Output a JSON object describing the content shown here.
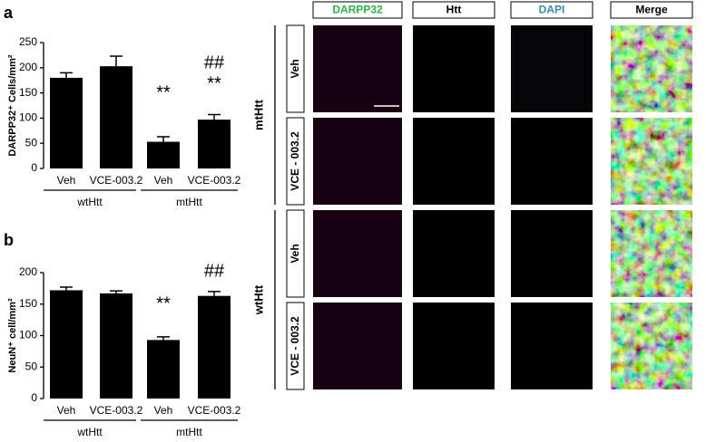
{
  "chart_data": [
    {
      "type": "bar",
      "panel_label": "a",
      "y_label": "DARPP32⁺ Cells/mm²",
      "categories": [
        "Veh",
        "VCE-003.2",
        "Veh",
        "VCE-003.2"
      ],
      "groups": [
        "wtHtt",
        "mtHtt"
      ],
      "values": [
        180,
        203,
        53,
        97
      ],
      "errors": [
        10,
        20,
        10,
        10
      ],
      "color": "#000000",
      "significance": [
        null,
        null,
        "**",
        "**"
      ],
      "significance_vs_veh": [
        null,
        null,
        null,
        "##"
      ],
      "ylim": [
        0,
        250
      ],
      "yticks": [
        0,
        50,
        100,
        150,
        200,
        250
      ]
    },
    {
      "type": "bar",
      "panel_label": "b",
      "y_label": "NeuN⁺ cell/mm²",
      "categories": [
        "Veh",
        "VCE-003.2",
        "Veh",
        "VCE-003.2"
      ],
      "groups": [
        "wtHtt",
        "mtHtt"
      ],
      "values": [
        172,
        167,
        93,
        163
      ],
      "errors": [
        5,
        4,
        5,
        7
      ],
      "color": "#000000",
      "significance": [
        null,
        null,
        "**",
        null
      ],
      "significance_vs_veh": [
        null,
        null,
        null,
        "##"
      ],
      "ylim": [
        0,
        200
      ],
      "yticks": [
        0,
        50,
        100,
        150,
        200
      ]
    }
  ],
  "images": {
    "columns": [
      "DARPP32",
      "Htt",
      "DAPI",
      "Merge"
    ],
    "groups": [
      "mtHtt",
      "wtHtt"
    ],
    "rows": [
      "Veh",
      "VCE - 003.2",
      "Veh",
      "VCE - 003.2"
    ]
  }
}
